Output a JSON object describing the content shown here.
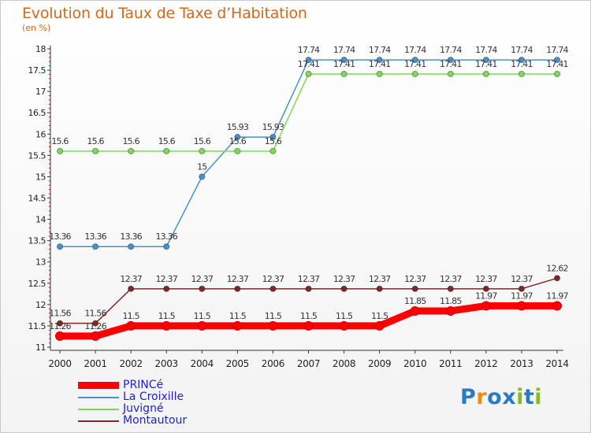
{
  "chart_data": {
    "type": "line",
    "title": "Evolution du Taux de Taxe d’Habitation",
    "subtitle": "(en %)",
    "xlabel": "",
    "ylabel": "(en %)",
    "ylim": [
      11,
      18
    ],
    "y_ticks": [
      "11",
      "11.5",
      "12",
      "12.5",
      "13",
      "13.5",
      "14",
      "14.5",
      "15",
      "15.5",
      "16",
      "16.5",
      "17",
      "17.5",
      "18"
    ],
    "categories": [
      "2000",
      "2001",
      "2002",
      "2003",
      "2004",
      "2005",
      "2006",
      "2007",
      "2008",
      "2009",
      "2010",
      "2011",
      "2012",
      "2013",
      "2014"
    ],
    "series": [
      {
        "name": "PRINCé",
        "color": "#ff0000",
        "values": [
          11.26,
          11.26,
          11.5,
          11.5,
          11.5,
          11.5,
          11.5,
          11.5,
          11.5,
          11.5,
          11.85,
          11.85,
          11.97,
          11.97,
          11.97
        ],
        "labels": [
          "11.26",
          "11.26",
          "11.5",
          "11.5",
          "11.5",
          "11.5",
          "11.5",
          "11.5",
          "11.5",
          "11.5",
          "11.85",
          "11.85",
          "11.97",
          "11.97",
          "11.97"
        ]
      },
      {
        "name": "La Croixille",
        "color": "#4a90c8",
        "values": [
          13.36,
          13.36,
          13.36,
          13.36,
          15,
          15.93,
          15.93,
          17.74,
          17.74,
          17.74,
          17.74,
          17.74,
          17.74,
          17.74,
          17.74
        ],
        "labels": [
          "13.36",
          "13.36",
          "13.36",
          "13.36",
          "15",
          "15.93",
          "15.93",
          "17.74",
          "17.74",
          "17.74",
          "17.74",
          "17.74",
          "17.74",
          "17.74",
          "17.74"
        ]
      },
      {
        "name": "Juvigné",
        "color": "#7ed957",
        "values": [
          15.6,
          15.6,
          15.6,
          15.6,
          15.6,
          15.6,
          15.6,
          17.41,
          17.41,
          17.41,
          17.41,
          17.41,
          17.41,
          17.41,
          17.41
        ],
        "labels": [
          "15.6",
          "15.6",
          "15.6",
          "15.6",
          "15.6",
          "15.6",
          "15.6",
          "17.41",
          "17.41",
          "17.41",
          "17.41",
          "17.41",
          "17.41",
          "17.41",
          "17.41"
        ]
      },
      {
        "name": "Montautour",
        "color": "#7b2a2a",
        "values": [
          11.56,
          11.56,
          12.37,
          12.37,
          12.37,
          12.37,
          12.37,
          12.37,
          12.37,
          12.37,
          12.37,
          12.37,
          12.37,
          12.37,
          12.62
        ],
        "labels": [
          "11.56",
          "11.56",
          "12.37",
          "12.37",
          "12.37",
          "12.37",
          "12.37",
          "12.37",
          "12.37",
          "12.37",
          "12.37",
          "12.37",
          "12.37",
          "12.37",
          "12.62"
        ]
      }
    ],
    "legend": "bottom-left",
    "grid": false
  },
  "colors": {
    "title": "#d2691e",
    "legend_text": "#2222cc",
    "axis": "#333333",
    "axis_tick_red": "#cc0000"
  },
  "watermark": {
    "letters": [
      "P",
      "r",
      "o",
      "x",
      "i",
      "t",
      "i"
    ],
    "colors": [
      "#2a7bc4",
      "#f08a10",
      "#2a7bc4",
      "#2a7bc4",
      "#88bb22",
      "#2a7bc4",
      "#88bb22"
    ]
  }
}
